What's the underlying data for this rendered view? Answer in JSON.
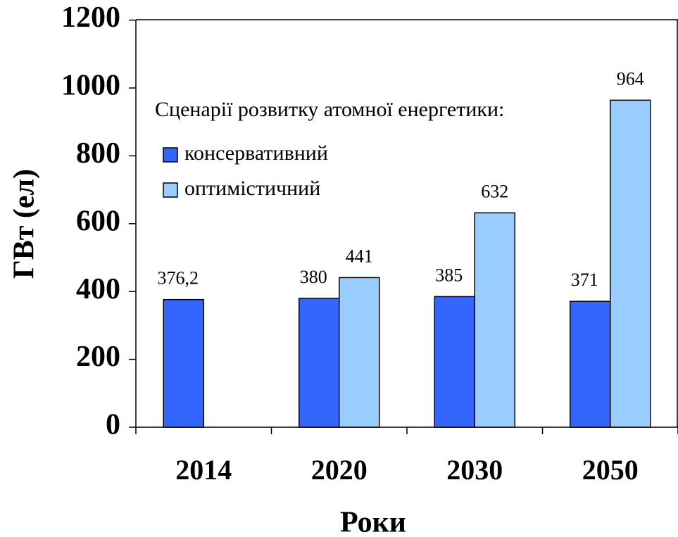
{
  "chart_data": {
    "type": "bar",
    "y_label": "ГВт (ел)",
    "x_label": "Роки",
    "legend_title": "Сценарії розвитку атомної енергетики:",
    "categories": [
      "2014",
      "2020",
      "2030",
      "2050"
    ],
    "series": [
      {
        "name": "консервативний",
        "color": "#3366ff",
        "values": [
          376.2,
          380,
          385,
          371
        ],
        "value_labels": [
          "376,2",
          "380",
          "385",
          "371"
        ]
      },
      {
        "name": "оптимістичний",
        "color": "#99ccff",
        "values": [
          null,
          441,
          632,
          964
        ]
      }
    ],
    "ylim": [
      0,
      1200
    ],
    "yticks": [
      0,
      200,
      400,
      600,
      800,
      1000,
      1200
    ],
    "grid": false,
    "legend": "upper left"
  }
}
